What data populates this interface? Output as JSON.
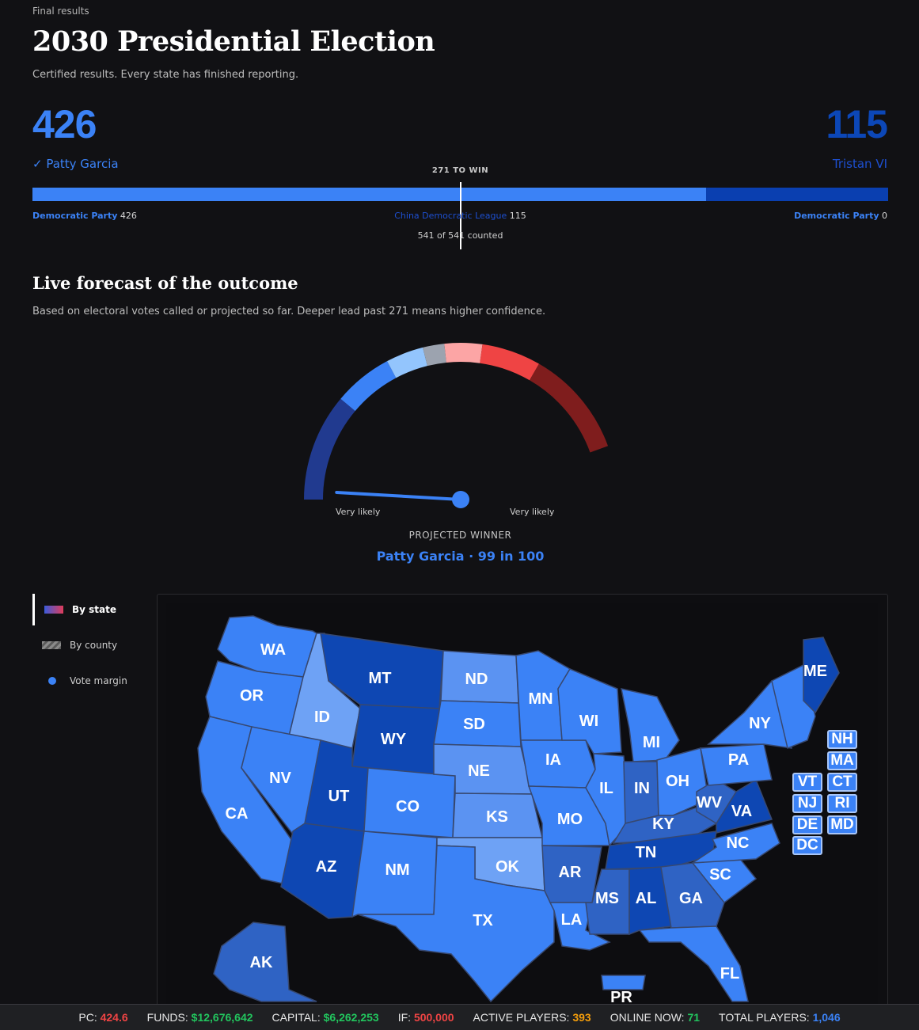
{
  "header": {
    "final_label": "Final results",
    "title": "2030 Presidential Election",
    "subtitle": "Certified results. Every state has finished reporting."
  },
  "results": {
    "left": {
      "votes": "426",
      "candidate": "✓ Patty Garcia"
    },
    "right": {
      "votes": "115",
      "candidate": "Tristan VI"
    },
    "to_win": "271 TO WIN",
    "left_share": 0.7874,
    "parties": [
      {
        "name": "Democratic Party",
        "value": "426"
      },
      {
        "name": "China Democratic League",
        "value": "115"
      },
      {
        "name": "Democratic Party",
        "value": "0"
      }
    ],
    "counted": "541 of 541 counted"
  },
  "forecast": {
    "title": "Live forecast of the outcome",
    "subtitle": "Based on electoral votes called or projected so far. Deeper lead past 271 means higher confidence.",
    "left_label": "Very likely",
    "right_label": "Very likely",
    "projected_label": "PROJECTED WINNER",
    "projected_winner": "Patty Garcia · 99 in 100",
    "probability_left": 0.99,
    "segment_colors": [
      "#213a8f",
      "#3b82f6",
      "#93c5fd",
      "#9ca3af",
      "#fca5a5",
      "#ef4444",
      "#7f1d1d"
    ]
  },
  "legend": {
    "items": [
      {
        "label": "By state"
      },
      {
        "label": "By county"
      },
      {
        "label": "Vote margin"
      }
    ]
  },
  "map": {
    "colors": {
      "light": "#5b93f2",
      "mid": "#3b82f6",
      "medium": "#2f63c4",
      "dark": "#0e47b3",
      "pale": "#6ea2f5"
    },
    "states": [
      "WA",
      "OR",
      "CA",
      "ID",
      "NV",
      "MT",
      "WY",
      "UT",
      "AZ",
      "CO",
      "NM",
      "ND",
      "SD",
      "NE",
      "KS",
      "OK",
      "TX",
      "MN",
      "IA",
      "MO",
      "AR",
      "LA",
      "WI",
      "IL",
      "MI",
      "IN",
      "OH",
      "KY",
      "TN",
      "MS",
      "AL",
      "GA",
      "FL",
      "SC",
      "NC",
      "VA",
      "WV",
      "PA",
      "NY",
      "ME",
      "AK",
      "PR"
    ],
    "small_states": [
      "NH",
      "MA",
      "VT",
      "CT",
      "NJ",
      "RI",
      "DE",
      "MD",
      "DC"
    ]
  },
  "status_bar": {
    "pc": {
      "label": "PC:",
      "value": "424.6"
    },
    "funds": {
      "label": "FUNDS:",
      "value": "$12,676,642"
    },
    "capital": {
      "label": "CAPITAL:",
      "value": "$6,262,253"
    },
    "if": {
      "label": "IF:",
      "value": "500,000"
    },
    "active": {
      "label": "ACTIVE PLAYERS:",
      "value": "393"
    },
    "online": {
      "label": "ONLINE NOW:",
      "value": "71"
    },
    "total": {
      "label": "TOTAL PLAYERS:",
      "value": "1,046"
    }
  }
}
